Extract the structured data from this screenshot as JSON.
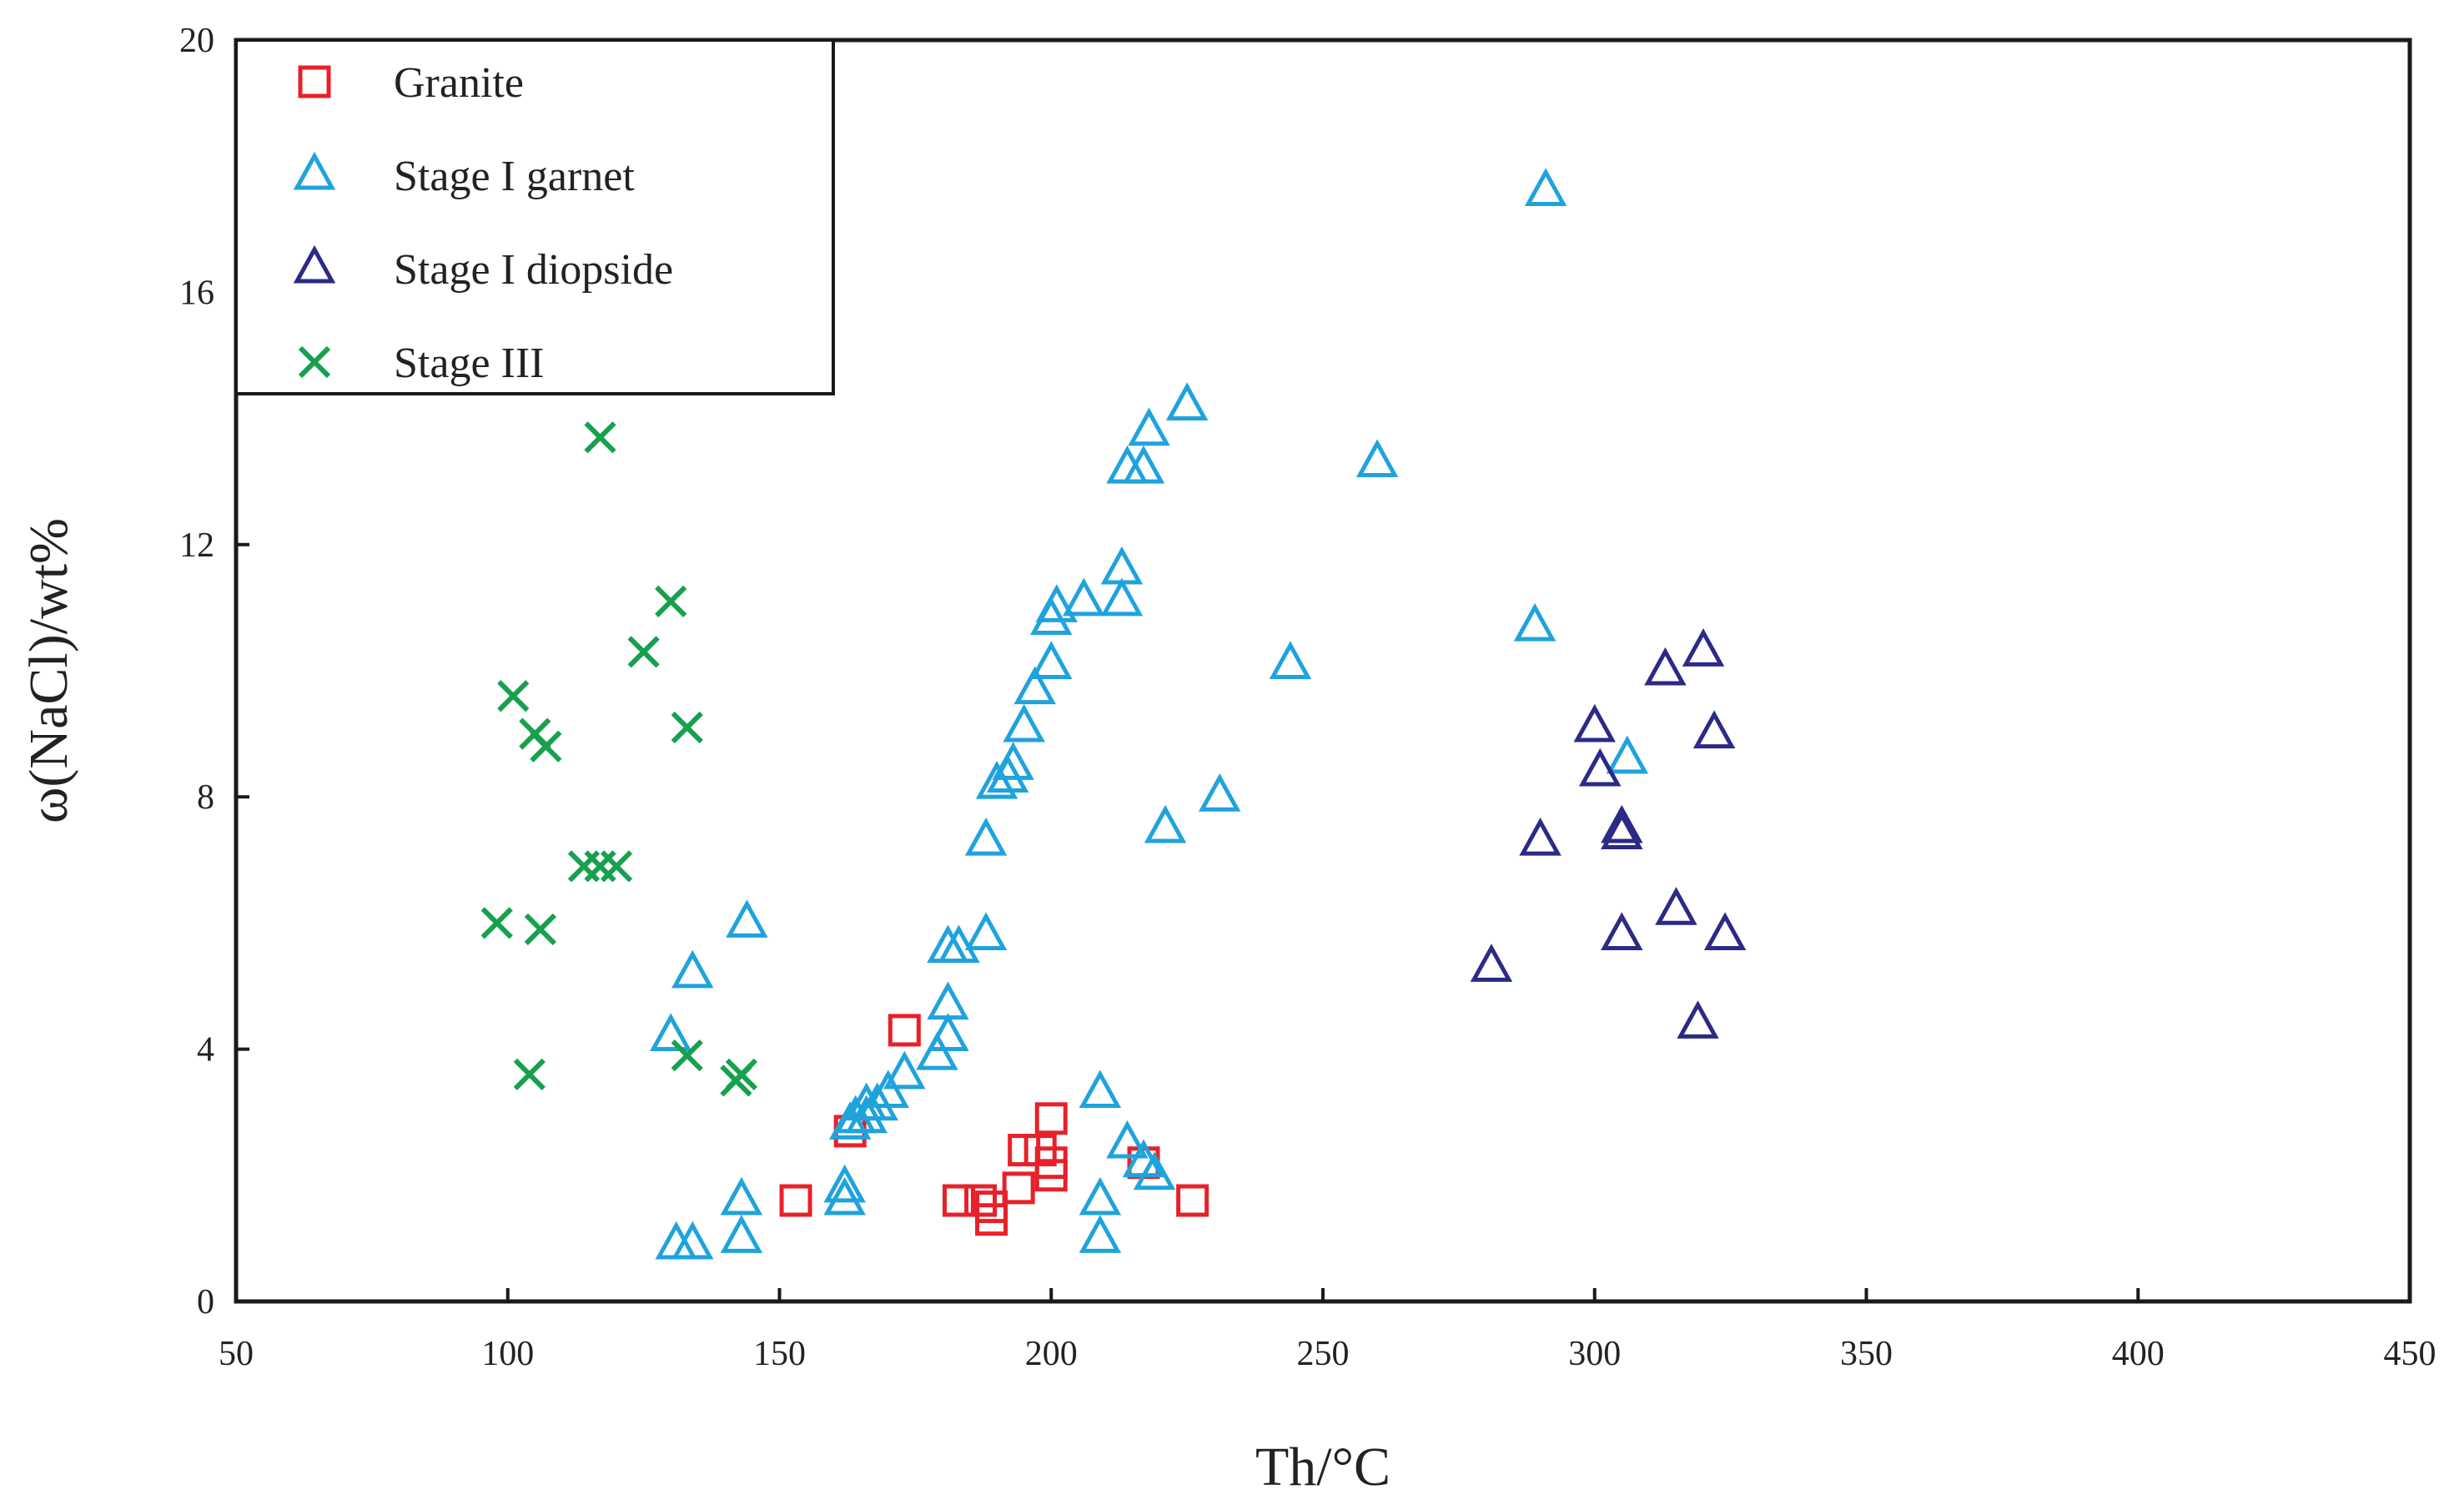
{
  "chart_data": {
    "type": "scatter",
    "title": "",
    "xlabel": "Th/°C",
    "ylabel": "ω(NaCl)/wt%",
    "xlim": [
      50,
      450
    ],
    "ylim": [
      0,
      20
    ],
    "x_ticks": [
      "50",
      "100",
      "150",
      "200",
      "250",
      "300",
      "350",
      "400",
      "450"
    ],
    "y_ticks": [
      "0",
      "4",
      "8",
      "12",
      "16",
      "20"
    ],
    "legend_position": "top-left",
    "grid": false,
    "series": [
      {
        "name": "Granite",
        "marker": "square",
        "color": "#e8202a",
        "points": [
          [
            153,
            1.6
          ],
          [
            163,
            2.7
          ],
          [
            173,
            4.3
          ],
          [
            183,
            1.6
          ],
          [
            187,
            1.6
          ],
          [
            189,
            1.3
          ],
          [
            189,
            1.5
          ],
          [
            194,
            1.8
          ],
          [
            195,
            2.4
          ],
          [
            198,
            2.4
          ],
          [
            200,
            2.0
          ],
          [
            200,
            2.2
          ],
          [
            200,
            2.9
          ],
          [
            217,
            2.2
          ],
          [
            226,
            1.6
          ]
        ]
      },
      {
        "name": "Stage I garnet",
        "marker": "triangle",
        "color": "#1fa3dd",
        "points": [
          [
            130,
            4.2
          ],
          [
            131,
            0.9
          ],
          [
            134,
            0.9
          ],
          [
            134,
            5.2
          ],
          [
            143,
            1.0
          ],
          [
            143,
            1.6
          ],
          [
            144,
            6.0
          ],
          [
            162,
            1.6
          ],
          [
            162,
            1.8
          ],
          [
            163,
            2.8
          ],
          [
            164,
            2.9
          ],
          [
            166,
            2.9
          ],
          [
            166,
            3.1
          ],
          [
            168,
            3.1
          ],
          [
            170,
            3.3
          ],
          [
            173,
            3.6
          ],
          [
            179,
            3.9
          ],
          [
            181,
            4.2
          ],
          [
            181,
            4.7
          ],
          [
            181,
            5.6
          ],
          [
            183,
            5.6
          ],
          [
            188,
            5.8
          ],
          [
            188,
            7.3
          ],
          [
            190,
            8.2
          ],
          [
            192,
            8.3
          ],
          [
            193,
            8.5
          ],
          [
            195,
            9.1
          ],
          [
            197,
            9.7
          ],
          [
            200,
            10.1
          ],
          [
            200,
            10.8
          ],
          [
            201,
            11.0
          ],
          [
            206,
            11.1
          ],
          [
            209,
            1.0
          ],
          [
            209,
            1.6
          ],
          [
            209,
            3.3
          ],
          [
            213,
            11.1
          ],
          [
            213,
            11.6
          ],
          [
            214,
            2.5
          ],
          [
            214,
            13.2
          ],
          [
            217,
            13.2
          ],
          [
            217,
            2.2
          ],
          [
            218,
            13.8
          ],
          [
            219,
            2.0
          ],
          [
            221,
            7.5
          ],
          [
            225,
            14.2
          ],
          [
            231,
            8.0
          ],
          [
            244,
            10.1
          ],
          [
            260,
            13.3
          ],
          [
            289,
            10.7
          ],
          [
            291,
            17.6
          ],
          [
            306,
            8.6
          ]
        ]
      },
      {
        "name": "Stage I diopside",
        "marker": "triangle",
        "color": "#2b2a85",
        "points": [
          [
            281,
            5.3
          ],
          [
            290,
            7.3
          ],
          [
            300,
            9.1
          ],
          [
            301,
            8.4
          ],
          [
            305,
            7.5
          ],
          [
            305,
            7.4
          ],
          [
            305,
            5.8
          ],
          [
            313,
            10.0
          ],
          [
            315,
            6.2
          ],
          [
            319,
            4.4
          ],
          [
            320,
            10.3
          ],
          [
            322,
            9.0
          ],
          [
            324,
            5.8
          ]
        ]
      },
      {
        "name": "Stage III",
        "marker": "x",
        "color": "#17a04e",
        "points": [
          [
            98,
            6.0
          ],
          [
            101,
            9.6
          ],
          [
            104,
            3.6
          ],
          [
            105,
            9.0
          ],
          [
            106,
            5.9
          ],
          [
            107,
            8.8
          ],
          [
            114,
            6.9
          ],
          [
            117,
            13.7
          ],
          [
            117,
            6.9
          ],
          [
            120,
            6.9
          ],
          [
            125,
            10.3
          ],
          [
            130,
            11.1
          ],
          [
            133,
            3.9
          ],
          [
            133,
            9.1
          ],
          [
            142,
            3.5
          ],
          [
            143,
            3.6
          ]
        ]
      }
    ]
  }
}
